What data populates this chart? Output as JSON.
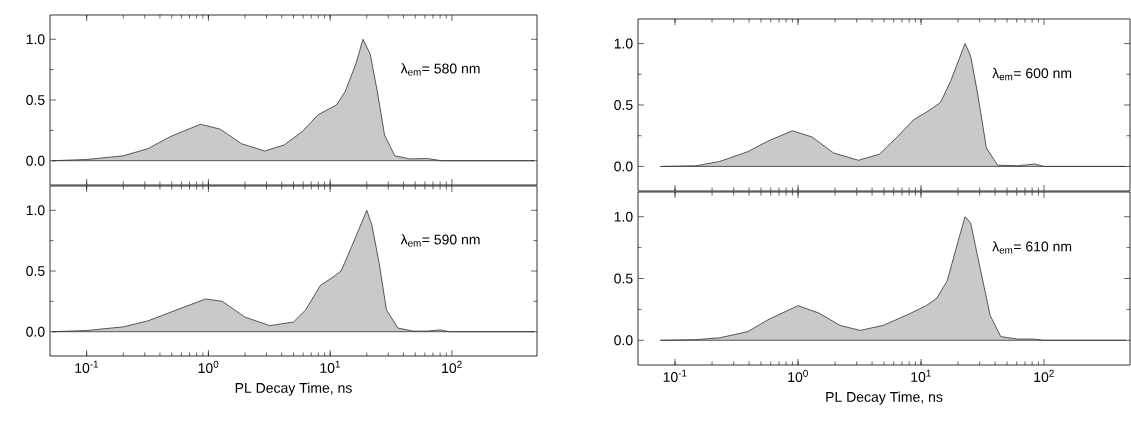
{
  "chart_data": [
    {
      "type": "area",
      "log": "x",
      "tick_labels": "y",
      "color": "#c8c9cb",
      "xlim": [
        0.05,
        500
      ],
      "ylim": [
        -0.2,
        1.2
      ],
      "xticks": [
        {
          "value": 0.1,
          "label": null
        },
        {
          "value": 1,
          "label": null
        },
        {
          "value": 10,
          "label": null
        },
        {
          "value": 100,
          "label": null
        }
      ],
      "yticks": [
        {
          "value": 0,
          "label": "0.0"
        },
        {
          "value": 0.25,
          "label": null
        },
        {
          "value": 0.5,
          "label": "0.5"
        },
        {
          "value": 0.75,
          "label": null
        },
        {
          "value": 1,
          "label": "1.0"
        }
      ],
      "x": [
        0.052,
        0.1,
        0.2,
        0.32,
        0.49,
        0.86,
        1.25,
        1.87,
        2.9,
        4.2,
        5.9,
        8.0,
        11.3,
        13.3,
        16.3,
        18.6,
        21.3,
        24.4,
        28.0,
        34,
        45,
        63,
        82,
        475
      ],
      "values": [
        0,
        0.01,
        0.04,
        0.1,
        0.2,
        0.3,
        0.26,
        0.14,
        0.08,
        0.13,
        0.24,
        0.38,
        0.46,
        0.57,
        0.8,
        1.0,
        0.88,
        0.57,
        0.21,
        0.04,
        0.015,
        0.018,
        0,
        0
      ],
      "annotations": [
        "λ$_{em}$= 580 nm"
      ]
    },
    {
      "type": "area",
      "log": "x",
      "color": "#c8c9cb",
      "xlim": [
        0.05,
        500
      ],
      "ylim": [
        -0.2,
        1.2
      ],
      "xlabel": "PL Decay Time, ns",
      "xticks": [
        {
          "value": 0.1,
          "label": "10$^{-1}$"
        },
        {
          "value": 1,
          "label": "10$^{0}$"
        },
        {
          "value": 10,
          "label": "10$^{1}$"
        },
        {
          "value": 100,
          "label": "10$^{2}$"
        }
      ],
      "yticks": [
        {
          "value": 0,
          "label": "0.0"
        },
        {
          "value": 0.25,
          "label": null
        },
        {
          "value": 0.5,
          "label": "0.5"
        },
        {
          "value": 0.75,
          "label": null
        },
        {
          "value": 1,
          "label": "1.0"
        }
      ],
      "x": [
        0.052,
        0.1,
        0.2,
        0.32,
        0.55,
        0.95,
        1.3,
        2.0,
        3.2,
        5.0,
        6.3,
        8.3,
        10.2,
        12.3,
        15.0,
        20.0,
        22.0,
        25.2,
        29.0,
        36,
        48,
        63,
        80,
        95,
        475
      ],
      "values": [
        0,
        0.01,
        0.04,
        0.09,
        0.18,
        0.27,
        0.25,
        0.12,
        0.05,
        0.08,
        0.18,
        0.38,
        0.44,
        0.5,
        0.7,
        1.0,
        0.88,
        0.57,
        0.18,
        0.03,
        0.005,
        0.005,
        0.015,
        0,
        0
      ],
      "annotations": [
        "λ$_{em}$= 590 nm"
      ]
    },
    {
      "type": "area",
      "log": "x",
      "tick_labels": "y",
      "color": "#c8c9cb",
      "xlim": [
        0.05,
        500
      ],
      "ylim": [
        -0.2,
        1.2
      ],
      "xticks": [
        {
          "value": 0.1,
          "label": null
        },
        {
          "value": 1,
          "label": null
        },
        {
          "value": 10,
          "label": null
        },
        {
          "value": 100,
          "label": null
        }
      ],
      "yticks": [
        {
          "value": 0,
          "label": "0.0"
        },
        {
          "value": 0.25,
          "label": null
        },
        {
          "value": 0.5,
          "label": "0.5"
        },
        {
          "value": 0.75,
          "label": null
        },
        {
          "value": 1,
          "label": "1.0"
        }
      ],
      "x": [
        0.076,
        0.148,
        0.23,
        0.39,
        0.58,
        0.9,
        1.3,
        1.94,
        3.1,
        4.6,
        6.4,
        8.7,
        11.0,
        14.4,
        17.5,
        22.8,
        25.3,
        29,
        34,
        42,
        61,
        84,
        100,
        460
      ],
      "values": [
        0,
        0.005,
        0.04,
        0.12,
        0.21,
        0.29,
        0.24,
        0.11,
        0.05,
        0.1,
        0.24,
        0.38,
        0.44,
        0.52,
        0.7,
        1.0,
        0.9,
        0.58,
        0.15,
        0.01,
        0.005,
        0.02,
        0,
        0
      ],
      "annotations": [
        "λ$_{em}$= 600 nm"
      ]
    },
    {
      "type": "area",
      "log": "x",
      "color": "#c8c9cb",
      "xlim": [
        0.05,
        500
      ],
      "ylim": [
        -0.2,
        1.2
      ],
      "xlabel": "PL Decay Time, ns",
      "xticks": [
        {
          "value": 0.1,
          "label": "10$^{-1}$"
        },
        {
          "value": 1,
          "label": "10$^{0}$"
        },
        {
          "value": 10,
          "label": "10$^{1}$"
        },
        {
          "value": 100,
          "label": "10$^{2}$"
        }
      ],
      "yticks": [
        {
          "value": 0,
          "label": "0.0"
        },
        {
          "value": 0.25,
          "label": null
        },
        {
          "value": 0.5,
          "label": "0.5"
        },
        {
          "value": 0.75,
          "label": null
        },
        {
          "value": 1,
          "label": "1.0"
        }
      ],
      "x": [
        0.076,
        0.148,
        0.23,
        0.39,
        0.58,
        1.0,
        1.48,
        2.2,
        3.2,
        4.9,
        7.9,
        11.0,
        13.4,
        16.3,
        20,
        22.8,
        25.3,
        30,
        36.5,
        44.5,
        61,
        81,
        100,
        460
      ],
      "values": [
        0,
        0.005,
        0.02,
        0.07,
        0.17,
        0.28,
        0.22,
        0.12,
        0.08,
        0.12,
        0.21,
        0.28,
        0.34,
        0.48,
        0.8,
        1.0,
        0.95,
        0.6,
        0.2,
        0.03,
        0.01,
        0.01,
        0,
        0
      ],
      "annotations": [
        "λ$_{em}$= 610 nm"
      ]
    }
  ]
}
